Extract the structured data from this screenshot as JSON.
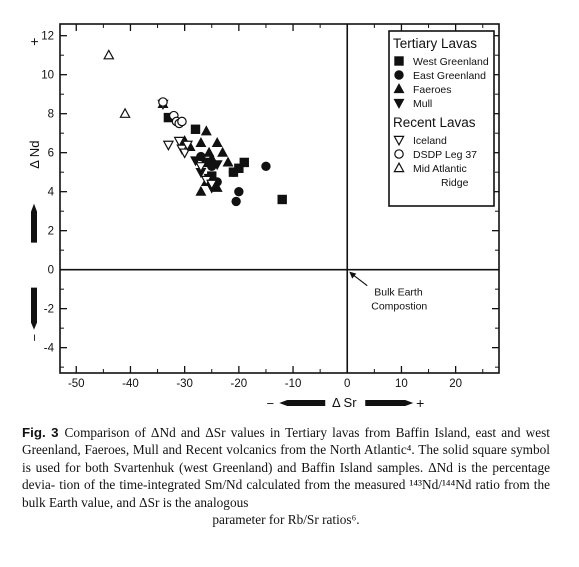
{
  "chart_data": {
    "type": "scatter",
    "xlabel": "Δ Sr",
    "ylabel": "Δ Nd",
    "xlabel_neg": "−",
    "xlabel_pos": "+",
    "ylabel_neg": "−",
    "ylabel_pos": "+",
    "xlim": [
      -53,
      28
    ],
    "ylim": [
      -5.3,
      12.6
    ],
    "xticks": [
      -50,
      -40,
      -30,
      -20,
      -10,
      0,
      10,
      20
    ],
    "yticks": [
      -4,
      -2,
      0,
      2,
      4,
      6,
      8,
      10,
      12
    ],
    "grid": false,
    "reference_lines": {
      "x": 0,
      "y": 0
    },
    "annotation": {
      "lines": [
        "Bulk Earth",
        "Compostion"
      ],
      "x": 0,
      "y": 0
    },
    "legend": {
      "position": "top-right",
      "groups": [
        {
          "title": "Tertiary Lavas",
          "entries": [
            {
              "label": "West Greenland",
              "marker": "square-filled"
            },
            {
              "label": "East Greenland",
              "marker": "circle-filled"
            },
            {
              "label": "Faeroes",
              "marker": "triangle-up-filled"
            },
            {
              "label": "Mull",
              "marker": "triangle-down-filled"
            }
          ]
        },
        {
          "title": "Recent Lavas",
          "entries": [
            {
              "label": "Iceland",
              "marker": "triangle-down-open"
            },
            {
              "label": "DSDP Leg 37",
              "marker": "circle-open"
            },
            {
              "label": "Mid Atlantic",
              "label2": "Ridge",
              "marker": "triangle-up-open"
            }
          ]
        }
      ]
    },
    "series": [
      {
        "marker": "square-filled",
        "points": [
          {
            "x": -33,
            "y": 7.8
          },
          {
            "x": -28,
            "y": 7.2
          },
          {
            "x": -26,
            "y": 5.5
          },
          {
            "x": -25,
            "y": 4.8
          },
          {
            "x": -21,
            "y": 5.0
          },
          {
            "x": -20,
            "y": 5.2
          },
          {
            "x": -19,
            "y": 5.5
          },
          {
            "x": -12,
            "y": 3.6
          }
        ]
      },
      {
        "marker": "circle-filled",
        "points": [
          {
            "x": -27,
            "y": 5.8
          },
          {
            "x": -25,
            "y": 5.3
          },
          {
            "x": -24,
            "y": 4.5
          },
          {
            "x": -21,
            "y": 5.0
          },
          {
            "x": -20.5,
            "y": 3.5
          },
          {
            "x": -20,
            "y": 4.0
          },
          {
            "x": -15,
            "y": 5.3
          }
        ]
      },
      {
        "marker": "triangle-up-filled",
        "points": [
          {
            "x": -34,
            "y": 8.5
          },
          {
            "x": -30,
            "y": 6.6
          },
          {
            "x": -29,
            "y": 6.3
          },
          {
            "x": -27,
            "y": 6.5
          },
          {
            "x": -26,
            "y": 7.1
          },
          {
            "x": -25.5,
            "y": 6.0
          },
          {
            "x": -25,
            "y": 5.7
          },
          {
            "x": -24,
            "y": 6.5
          },
          {
            "x": -23,
            "y": 6.0
          },
          {
            "x": -22,
            "y": 5.5
          },
          {
            "x": -27,
            "y": 4.0
          },
          {
            "x": -26,
            "y": 4.5
          },
          {
            "x": -24,
            "y": 4.2
          }
        ]
      },
      {
        "marker": "triangle-down-filled",
        "points": [
          {
            "x": -28,
            "y": 5.6
          },
          {
            "x": -27,
            "y": 5.0
          },
          {
            "x": -25.5,
            "y": 4.7
          },
          {
            "x": -25,
            "y": 4.2
          },
          {
            "x": -24,
            "y": 5.4
          }
        ]
      },
      {
        "marker": "triangle-down-open",
        "points": [
          {
            "x": -34,
            "y": 8.5
          },
          {
            "x": -33,
            "y": 6.4
          },
          {
            "x": -31,
            "y": 6.6
          },
          {
            "x": -30.5,
            "y": 6.2
          },
          {
            "x": -30,
            "y": 6.0
          },
          {
            "x": -29.5,
            "y": 6.4
          },
          {
            "x": -27,
            "y": 5.3
          },
          {
            "x": -26,
            "y": 4.6
          },
          {
            "x": -25,
            "y": 4.4
          }
        ]
      },
      {
        "marker": "circle-open",
        "points": [
          {
            "x": -34,
            "y": 8.6
          },
          {
            "x": -32,
            "y": 7.9
          },
          {
            "x": -31.5,
            "y": 7.6
          },
          {
            "x": -31,
            "y": 7.5
          },
          {
            "x": -30.5,
            "y": 7.6
          }
        ]
      },
      {
        "marker": "triangle-up-open",
        "points": [
          {
            "x": -44,
            "y": 11.0
          },
          {
            "x": -41,
            "y": 8.0
          }
        ]
      }
    ]
  },
  "caption": {
    "fig": "Fig. 3",
    "lines": [
      "Comparison of ΔNd and ΔSr values in Tertiary lavas from Baffin",
      "Island, east and west Greenland, Faeroes, Mull and Recent volcanics from",
      "the North Atlantic⁴. The solid square symbol is used for both Svartenhuk",
      "(west Greenland) and Baffin Island samples. ΔNd is the percentage devia-",
      "tion of the time-integrated Sm/Nd calculated from the measured",
      "¹⁴³Nd/¹⁴⁴Nd ratio from the bulk Earth value, and ΔSr is the analogous",
      "parameter for Rb/Sr ratios⁶."
    ]
  }
}
